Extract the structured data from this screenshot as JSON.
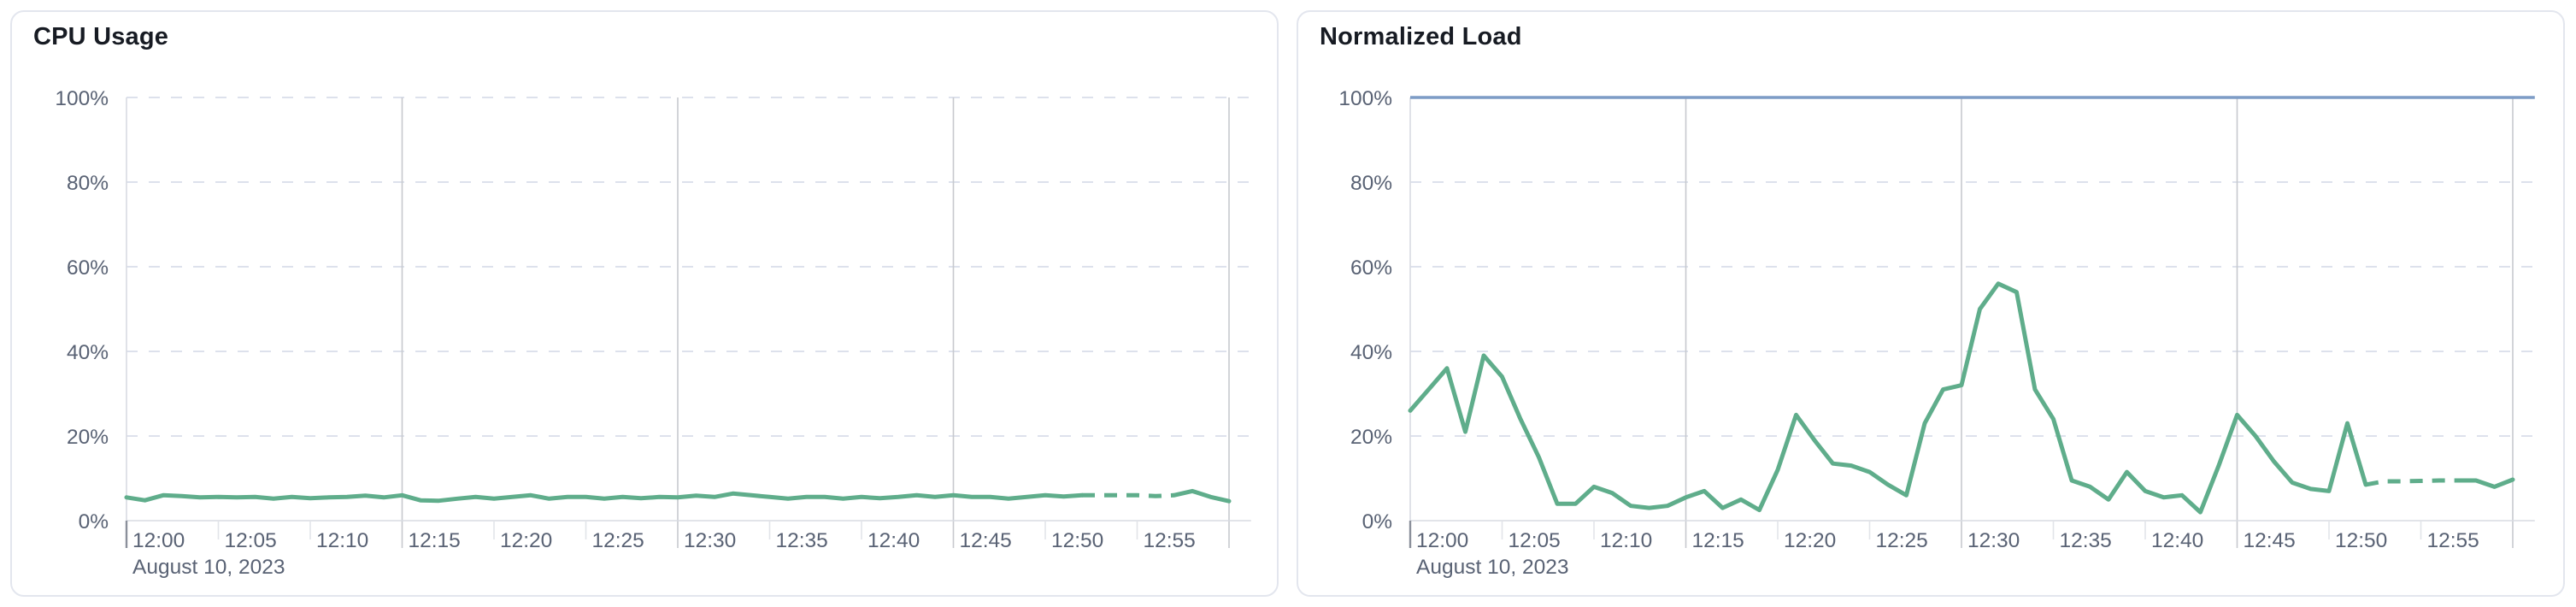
{
  "page": {
    "background": "#ffffff",
    "card_border": "#e3e6ee"
  },
  "chart_data": [
    {
      "type": "line",
      "title": "CPU Usage",
      "date_label": "August 10, 2023",
      "x_start": "12:00",
      "x_end": "13:00",
      "point_interval_minutes": 1,
      "x_tick_labels": [
        "12:00",
        "12:05",
        "12:10",
        "12:15",
        "12:20",
        "12:25",
        "12:30",
        "12:35",
        "12:40",
        "12:45",
        "12:50",
        "12:55"
      ],
      "y_tick_labels": [
        "0%",
        "20%",
        "40%",
        "60%",
        "80%",
        "100%"
      ],
      "ylim": [
        0,
        100
      ],
      "unit": "%",
      "grid": {
        "horizontal": "dashed",
        "vertical_every_minutes": 15
      },
      "limit_line": null,
      "series": [
        {
          "name": "cpu-usage",
          "color": "#5fad8b",
          "dashed_from_index": 52,
          "dashed_to_index": 57,
          "values": [
            5.5,
            4.8,
            6,
            5.8,
            5.5,
            5.6,
            5.5,
            5.6,
            5.2,
            5.6,
            5.3,
            5.5,
            5.6,
            5.9,
            5.5,
            6,
            4.8,
            4.7,
            5.2,
            5.6,
            5.2,
            5.6,
            6,
            5.2,
            5.6,
            5.6,
            5.2,
            5.6,
            5.3,
            5.6,
            5.5,
            5.9,
            5.6,
            6.4,
            6,
            5.6,
            5.2,
            5.6,
            5.6,
            5.2,
            5.6,
            5.3,
            5.6,
            6,
            5.6,
            6,
            5.6,
            5.6,
            5.2,
            5.6,
            6,
            5.7,
            6,
            6,
            6,
            6,
            5.8,
            6,
            7,
            5.6,
            4.6
          ]
        }
      ]
    },
    {
      "type": "line",
      "title": "Normalized Load",
      "date_label": "August 10, 2023",
      "x_start": "12:00",
      "x_end": "13:00",
      "point_interval_minutes": 1,
      "x_tick_labels": [
        "12:00",
        "12:05",
        "12:10",
        "12:15",
        "12:20",
        "12:25",
        "12:30",
        "12:35",
        "12:40",
        "12:45",
        "12:50",
        "12:55"
      ],
      "y_tick_labels": [
        "0%",
        "20%",
        "40%",
        "60%",
        "80%",
        "100%"
      ],
      "ylim": [
        0,
        100
      ],
      "unit": "%",
      "grid": {
        "horizontal": "dashed",
        "vertical_every_minutes": 15
      },
      "limit_line": {
        "value": 100,
        "color": "#7d9cc6"
      },
      "series": [
        {
          "name": "normalized-load",
          "color": "#5fad8b",
          "dashed_from_index": 52,
          "dashed_to_index": 57,
          "values": [
            26,
            31,
            36,
            21,
            39,
            34,
            24,
            15,
            4,
            4,
            8,
            6.5,
            3.5,
            3,
            3.5,
            5.5,
            7,
            3,
            5,
            2.5,
            12,
            25,
            19,
            13.5,
            13,
            11.5,
            8.5,
            6,
            23,
            31,
            32,
            50,
            56,
            54,
            31,
            24,
            9.5,
            8,
            5,
            11.5,
            7,
            5.5,
            6,
            2,
            13,
            25,
            20,
            14,
            9,
            7.5,
            7,
            23,
            8.5,
            9.3,
            9.3,
            9.4,
            9.5,
            9.5,
            9.5,
            8,
            9.7
          ]
        }
      ]
    }
  ]
}
